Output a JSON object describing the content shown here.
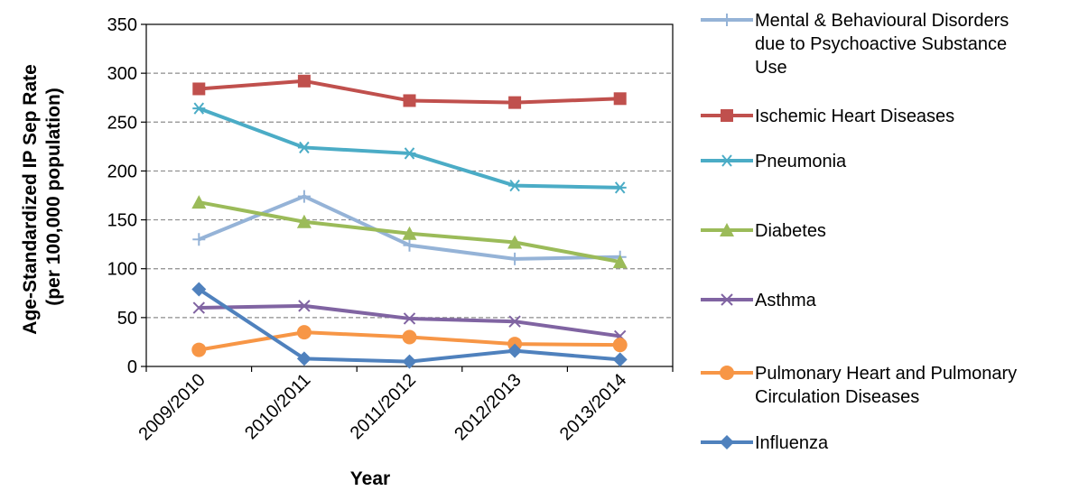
{
  "chart_data": {
    "type": "line",
    "title": "",
    "xlabel": "Year",
    "ylabel_lines": [
      "Age-Standardized IP Sep Rate",
      "(per 100,000 population)"
    ],
    "ylim": [
      0,
      350
    ],
    "yticks": [
      0,
      50,
      100,
      150,
      200,
      250,
      300,
      350
    ],
    "grid": "horizontal dashed",
    "legend_position": "right",
    "categories": [
      "2009/2010",
      "2010/2011",
      "2011/2012",
      "2012/2013",
      "2013/2014"
    ],
    "series": [
      {
        "name": "Mental & Behavioural Disorders due to Psychoactive Substance Use",
        "legend_lines": [
          "Mental & Behavioural Disorders",
          "due to Psychoactive Substance",
          "Use"
        ],
        "color": "#95B3D7",
        "marker": "plus",
        "values": [
          130,
          174,
          124,
          110,
          112
        ]
      },
      {
        "name": "Ischemic Heart Diseases",
        "legend_lines": [
          "Ischemic Heart Diseases"
        ],
        "color": "#C0504D",
        "marker": "square",
        "values": [
          284,
          292,
          272,
          270,
          274
        ]
      },
      {
        "name": "Pneumonia",
        "legend_lines": [
          "Pneumonia"
        ],
        "color": "#4BACC6",
        "marker": "star",
        "values": [
          264,
          224,
          218,
          185,
          183
        ]
      },
      {
        "name": "Diabetes",
        "legend_lines": [
          "Diabetes"
        ],
        "color": "#9BBB59",
        "marker": "triangle",
        "values": [
          168,
          148,
          136,
          127,
          107
        ]
      },
      {
        "name": "Asthma",
        "legend_lines": [
          "Asthma"
        ],
        "color": "#8064A2",
        "marker": "x",
        "values": [
          60,
          62,
          49,
          46,
          31
        ]
      },
      {
        "name": "Pulmonary Heart and Pulmonary Circulation Diseases",
        "legend_lines": [
          "Pulmonary Heart and Pulmonary",
          "Circulation Diseases"
        ],
        "color": "#F79646",
        "marker": "circle",
        "values": [
          17,
          35,
          30,
          23,
          22
        ]
      },
      {
        "name": "Influenza",
        "legend_lines": [
          "Influenza"
        ],
        "color": "#4F81BD",
        "marker": "diamond",
        "values": [
          79,
          8,
          5,
          16,
          7
        ]
      }
    ]
  }
}
